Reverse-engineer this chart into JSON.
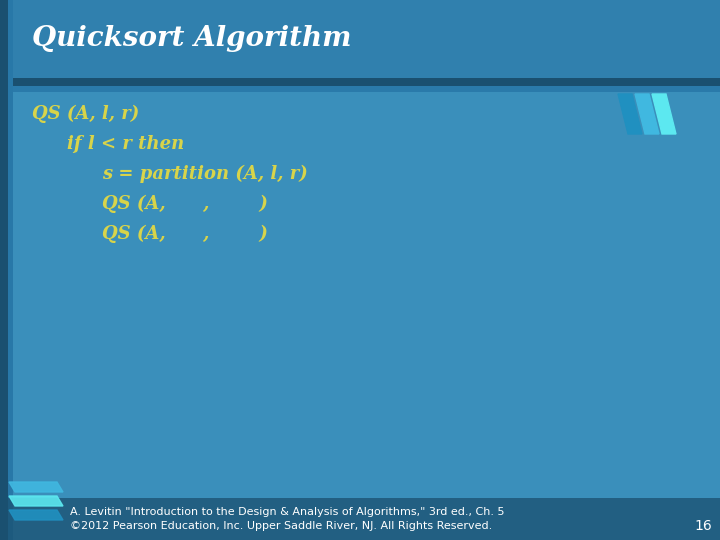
{
  "title": "Quicksort Algorithm",
  "bg_color_top": "#2a6d96",
  "bg_color_main": "#3a8fbb",
  "title_bg_color": "#3080ae",
  "title_text_color": "#ffffff",
  "code_text_color": "#d8d44a",
  "footer_text_color": "#ffffff",
  "slide_number": "16",
  "title_fontsize": 20,
  "code_fontsize": 13,
  "footer_fontsize": 8,
  "footer_line1": "A. Levitin \"Introduction to the Design & Analysis of Algorithms,\" 3rd ed., Ch. 5",
  "footer_line2": "©2012 Pearson Education, Inc. Upper Saddle River, NJ. All Rights Reserved.",
  "code_lines": [
    {
      "text": "QS (A, l, r)",
      "indent": 0
    },
    {
      "text": "if l < r then",
      "indent": 1
    },
    {
      "text": "s = partition (A, l, r)",
      "indent": 2
    },
    {
      "text": "QS (A,      ,        )",
      "indent": 2
    },
    {
      "text": "QS (A,      ,        )",
      "indent": 2
    }
  ],
  "accent_cyan": "#5ce8f0",
  "accent_blue": "#40b8e0",
  "accent_mid": "#2090c0",
  "dark_bar_color": "#1a4f70",
  "separator_dark": "#1a5070",
  "separator_light": "#2a7aaa",
  "left_bar_color": "#1a5070",
  "left_bar2_color": "#2878a8"
}
